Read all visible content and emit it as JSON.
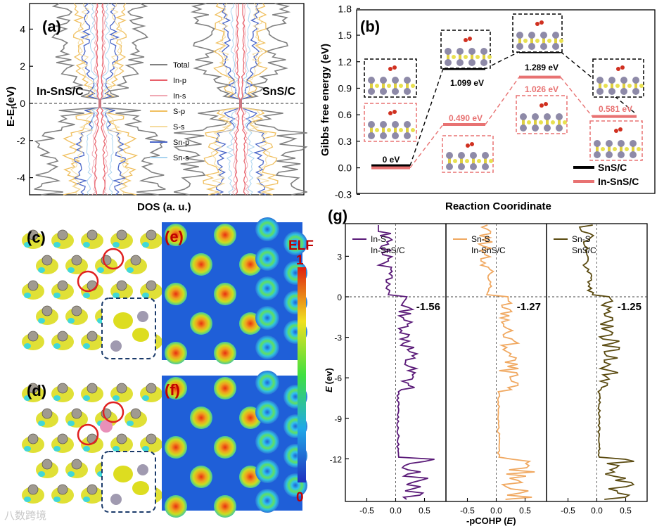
{
  "panels": {
    "a": {
      "label": "(a)",
      "ylabel": "E-E",
      "ylabel_sub": "f",
      "ylabel_unit": "(eV)",
      "xlabel": "DOS (a. u.)",
      "left_title": "In-SnS/C",
      "right_title": "SnS/C",
      "yticks": [
        "4",
        "2",
        "0",
        "-2",
        "-4"
      ],
      "legend": [
        {
          "name": "Total",
          "color": "#808080"
        },
        {
          "name": "In-p",
          "color": "#e8606a"
        },
        {
          "name": "In-s",
          "color": "#f0a9b4"
        },
        {
          "name": "S-p",
          "color": "#f0c060"
        },
        {
          "name": "S-s",
          "color": "#f5dca0"
        },
        {
          "name": "Sn-p",
          "color": "#4a66c8"
        },
        {
          "name": "Sn-s",
          "color": "#a9d4f0"
        }
      ]
    },
    "b": {
      "label": "(b)",
      "ylabel": "Gibbs free energy (eV)",
      "xlabel": "Reaction Cooridinate",
      "yticks": [
        "1.8",
        "1.5",
        "1.2",
        "0.9",
        "0.6",
        "0.3",
        "0.0",
        "-0.3"
      ],
      "legend": [
        {
          "name": "SnS/C",
          "color": "#000000"
        },
        {
          "name": "In-SnS/C",
          "color": "#e87272"
        }
      ],
      "energies_snsc": [
        "0 eV",
        "1.099 eV",
        "1.289 eV",
        ""
      ],
      "energies_insnsc": [
        "",
        "0.490 eV",
        "1.026 eV",
        "0.581 eV"
      ]
    },
    "c": {
      "label": "(c)"
    },
    "d": {
      "label": "(d)"
    },
    "e": {
      "label": "(e)"
    },
    "f": {
      "label": "(f)"
    },
    "elf": {
      "title": "ELF",
      "max": "1",
      "min": "0"
    },
    "g": {
      "label": "(g)",
      "ylabel": "E",
      "ylabel_unit": "(ev)",
      "xlabel": "-pCOHP (",
      "xlabel_e": "E",
      "xlabel_end": ")",
      "yticks": [
        "3",
        "0",
        "-3",
        "-6",
        "-9",
        "-12"
      ],
      "xticks": [
        "-0.5",
        "0.0",
        "0.5"
      ],
      "subpanels": [
        {
          "bond": "In-S",
          "system": "In-SnS/C",
          "value": "-1.56",
          "color": "#5a1a78"
        },
        {
          "bond": "Sn-S",
          "system": "In-SnS/C",
          "value": "-1.27",
          "color": "#f0a860"
        },
        {
          "bond": "Sn-S",
          "system": "SnS/C",
          "value": "-1.25",
          "color": "#5a4a10"
        }
      ]
    }
  },
  "chart_data": [
    {
      "type": "line",
      "title": "",
      "xlabel": "Reaction Cooridinate",
      "ylabel": "Gibbs free energy (eV)",
      "ylim": [
        -0.3,
        1.8
      ],
      "series": [
        {
          "name": "SnS/C",
          "values": [
            0,
            1.099,
            1.289,
            0.581
          ]
        },
        {
          "name": "In-SnS/C",
          "values": [
            0,
            0.49,
            1.026,
            0.581
          ]
        }
      ]
    }
  ],
  "watermark": "八数跨境"
}
